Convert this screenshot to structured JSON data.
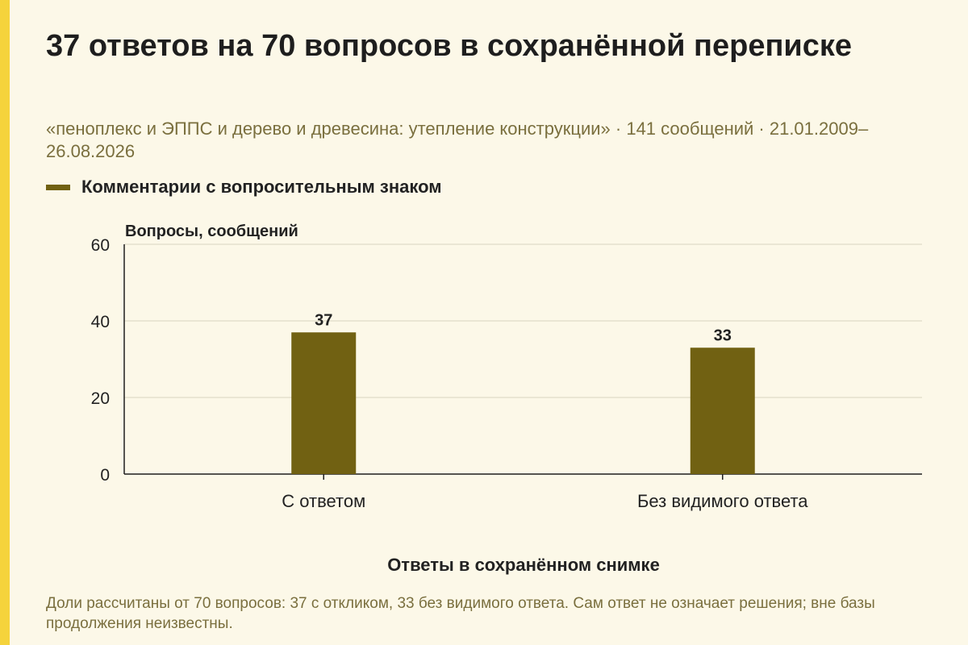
{
  "header": {
    "title": "37 ответов на 70 вопросов в сохранённой переписке",
    "subtitle": "«пеноплекс и ЭППС и дерево и древесина: утепление конструкции» · 141 сообщений · 21.01.2009–26.08.2026"
  },
  "footnote": "Доли рассчитаны от 70 вопросов: 37 с откликом, 33 без видимого ответа. Сам ответ не означает решения; вне базы продолжения неизвестны.",
  "colors": {
    "background": "#fcf8e8",
    "accent": "#f5d33c",
    "bar": "#716112",
    "muted_text": "#7a6f3e"
  },
  "chart_data": {
    "type": "bar",
    "categories": [
      "С ответом",
      "Без видимого ответа"
    ],
    "series": [
      {
        "name": "Комментарии с вопросительным знаком",
        "values": [
          37,
          33
        ]
      }
    ],
    "xlabel": "Ответы в сохранённом снимке",
    "ylabel": "Вопросы, сообщений",
    "ylim": [
      0,
      60
    ],
    "yticks": [
      0,
      20,
      40,
      60
    ],
    "grid": true,
    "legend": "top-left",
    "data_labels": true
  }
}
